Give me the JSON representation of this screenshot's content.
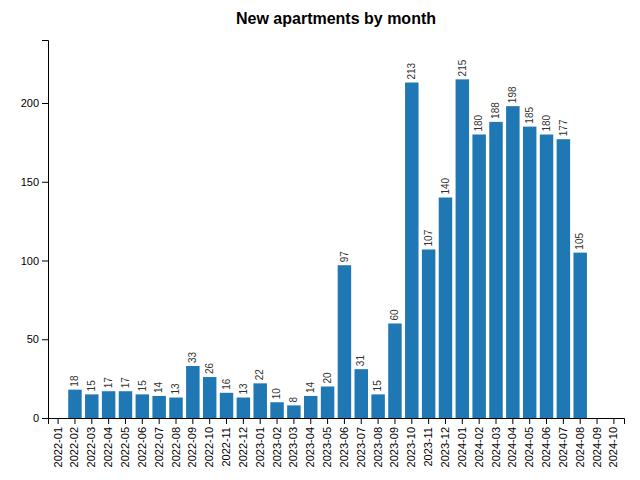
{
  "chart_data": {
    "type": "bar",
    "title": "New apartments by month",
    "categories": [
      "2022-01",
      "2022-02",
      "2022-03",
      "2022-04",
      "2022-05",
      "2022-06",
      "2022-07",
      "2022-08",
      "2022-09",
      "2022-10",
      "2022-11",
      "2022-12",
      "2023-01",
      "2023-02",
      "2023-03",
      "2023-04",
      "2023-05",
      "2023-06",
      "2023-07",
      "2023-08",
      "2023-09",
      "2023-10",
      "2023-11",
      "2023-12",
      "2024-01",
      "2024-02",
      "2024-03",
      "2024-04",
      "2024-05",
      "2024-06",
      "2024-07",
      "2024-08",
      "2024-09",
      "2024-10"
    ],
    "values": [
      0,
      18,
      15,
      17,
      17,
      15,
      14,
      13,
      33,
      26,
      16,
      13,
      22,
      10,
      8,
      14,
      20,
      97,
      31,
      15,
      60,
      213,
      107,
      140,
      215,
      180,
      188,
      198,
      185,
      180,
      177,
      105,
      0,
      0
    ],
    "value_labels": [
      null,
      "18",
      "15",
      "17",
      "17",
      "15",
      "14",
      "13",
      "33",
      "26",
      "16",
      "13",
      "22",
      "10",
      "8",
      "14",
      "20",
      "97",
      "31",
      "15",
      "60",
      "213",
      "107",
      "140",
      "215",
      "180",
      "188",
      "198",
      "185",
      "180",
      "177",
      "105",
      null,
      null
    ],
    "data_labels": true,
    "color": "#1f77b4",
    "ylim": [
      0,
      240
    ],
    "yticks": [
      0,
      50,
      100,
      150,
      200
    ],
    "grid": false
  }
}
